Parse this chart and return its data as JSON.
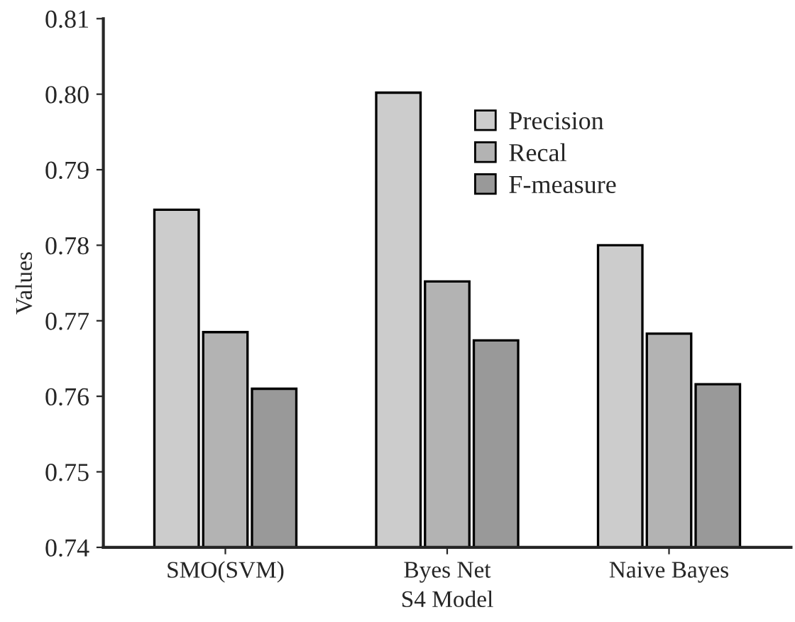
{
  "chart_data": {
    "type": "bar",
    "xlabel": "S4 Model",
    "ylabel": "Values",
    "categories": [
      "SMO(SVM)",
      "Byes Net",
      "Naive Bayes"
    ],
    "series": [
      {
        "name": "Precision",
        "color": "#cccccc",
        "values": [
          0.7847,
          0.8002,
          0.78
        ]
      },
      {
        "name": "Recal",
        "color": "#b3b3b3",
        "values": [
          0.7685,
          0.7752,
          0.7683
        ]
      },
      {
        "name": "F-measure",
        "color": "#999999",
        "values": [
          0.761,
          0.7674,
          0.7616
        ]
      }
    ],
    "ylim": [
      0.74,
      0.81
    ],
    "yticks": [
      {
        "value": 0.74,
        "label": "0.74"
      },
      {
        "value": 0.75,
        "label": "0.75"
      },
      {
        "value": 0.76,
        "label": "0.76"
      },
      {
        "value": 0.77,
        "label": "0.77"
      },
      {
        "value": 0.78,
        "label": "0.78"
      },
      {
        "value": 0.79,
        "label": "0.79"
      },
      {
        "value": 0.8,
        "label": "0.80"
      },
      {
        "value": 0.81,
        "label": "0.81"
      }
    ],
    "grid": false,
    "legend": "top right"
  }
}
